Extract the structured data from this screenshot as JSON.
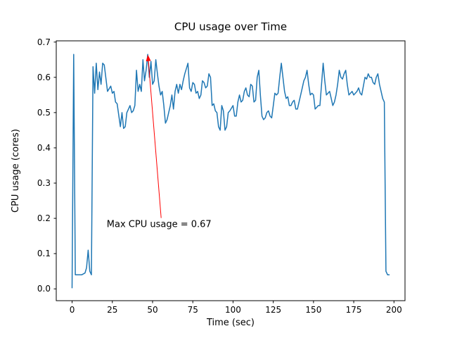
{
  "figure": {
    "background": "#ffffff"
  },
  "chart_data": {
    "type": "line",
    "title": "CPU usage over Time",
    "xlabel": "Time (sec)",
    "ylabel": "CPU usage (cores)",
    "line_color": "#1f77b4",
    "legend": "none",
    "grid": false,
    "xlim": [
      -9.85,
      206.85
    ],
    "ylim": [
      -0.0335,
      0.7035
    ],
    "xticks": [
      0,
      25,
      50,
      75,
      100,
      125,
      150,
      175,
      200
    ],
    "yticks": [
      0,
      0.1,
      0.2,
      0.3,
      0.4,
      0.5,
      0.6,
      0.7
    ],
    "ytick_labels": [
      "0.0",
      "0.1",
      "0.2",
      "0.3",
      "0.4",
      "0.5",
      "0.6",
      "0.7"
    ],
    "annotation": {
      "text": "Max CPU usage = 0.67",
      "arrow_x": 47,
      "arrow_y": 0.67,
      "text_x": 21.5,
      "text_y": 0.175,
      "color": "#ff0000"
    },
    "points": [
      [
        0,
        0.003
      ],
      [
        1,
        0.665
      ],
      [
        2,
        0.04
      ],
      [
        4,
        0.04
      ],
      [
        6,
        0.04
      ],
      [
        8,
        0.045
      ],
      [
        9,
        0.06
      ],
      [
        10,
        0.11
      ],
      [
        11,
        0.05
      ],
      [
        12,
        0.04
      ],
      [
        13,
        0.63
      ],
      [
        14,
        0.555
      ],
      [
        15,
        0.64
      ],
      [
        16,
        0.565
      ],
      [
        17,
        0.615
      ],
      [
        18,
        0.58
      ],
      [
        19,
        0.64
      ],
      [
        20,
        0.635
      ],
      [
        22,
        0.56
      ],
      [
        24,
        0.575
      ],
      [
        25,
        0.555
      ],
      [
        26,
        0.56
      ],
      [
        27,
        0.53
      ],
      [
        28,
        0.525
      ],
      [
        30,
        0.46
      ],
      [
        31,
        0.5
      ],
      [
        32,
        0.455
      ],
      [
        33,
        0.46
      ],
      [
        34,
        0.5
      ],
      [
        35,
        0.51
      ],
      [
        36,
        0.52
      ],
      [
        37,
        0.5
      ],
      [
        38,
        0.505
      ],
      [
        39,
        0.52
      ],
      [
        40,
        0.62
      ],
      [
        41,
        0.56
      ],
      [
        42,
        0.58
      ],
      [
        43,
        0.56
      ],
      [
        44,
        0.65
      ],
      [
        45,
        0.59
      ],
      [
        46,
        0.62
      ],
      [
        47,
        0.665
      ],
      [
        48,
        0.6
      ],
      [
        49,
        0.645
      ],
      [
        50,
        0.58
      ],
      [
        51,
        0.59
      ],
      [
        52,
        0.65
      ],
      [
        53,
        0.61
      ],
      [
        54,
        0.575
      ],
      [
        55,
        0.55
      ],
      [
        56,
        0.56
      ],
      [
        57,
        0.52
      ],
      [
        58,
        0.47
      ],
      [
        59,
        0.48
      ],
      [
        60,
        0.5
      ],
      [
        61,
        0.52
      ],
      [
        62,
        0.55
      ],
      [
        63,
        0.51
      ],
      [
        64,
        0.56
      ],
      [
        65,
        0.58
      ],
      [
        66,
        0.555
      ],
      [
        67,
        0.58
      ],
      [
        68,
        0.565
      ],
      [
        69,
        0.59
      ],
      [
        70,
        0.61
      ],
      [
        71,
        0.625
      ],
      [
        72,
        0.64
      ],
      [
        73,
        0.57
      ],
      [
        74,
        0.56
      ],
      [
        75,
        0.585
      ],
      [
        76,
        0.58
      ],
      [
        77,
        0.555
      ],
      [
        78,
        0.56
      ],
      [
        79,
        0.54
      ],
      [
        80,
        0.55
      ],
      [
        81,
        0.59
      ],
      [
        82,
        0.585
      ],
      [
        83,
        0.57
      ],
      [
        84,
        0.575
      ],
      [
        85,
        0.61
      ],
      [
        86,
        0.6
      ],
      [
        87,
        0.52
      ],
      [
        88,
        0.525
      ],
      [
        89,
        0.505
      ],
      [
        90,
        0.5
      ],
      [
        91,
        0.46
      ],
      [
        92,
        0.45
      ],
      [
        93,
        0.52
      ],
      [
        94,
        0.505
      ],
      [
        95,
        0.45
      ],
      [
        96,
        0.46
      ],
      [
        97,
        0.5
      ],
      [
        98,
        0.505
      ],
      [
        100,
        0.52
      ],
      [
        101,
        0.49
      ],
      [
        102,
        0.49
      ],
      [
        103,
        0.53
      ],
      [
        104,
        0.55
      ],
      [
        105,
        0.53
      ],
      [
        106,
        0.535
      ],
      [
        107,
        0.56
      ],
      [
        108,
        0.57
      ],
      [
        109,
        0.55
      ],
      [
        110,
        0.545
      ],
      [
        111,
        0.58
      ],
      [
        112,
        0.575
      ],
      [
        113,
        0.53
      ],
      [
        114,
        0.535
      ],
      [
        115,
        0.6
      ],
      [
        116,
        0.62
      ],
      [
        117,
        0.55
      ],
      [
        118,
        0.49
      ],
      [
        119,
        0.48
      ],
      [
        120,
        0.485
      ],
      [
        121,
        0.5
      ],
      [
        122,
        0.505
      ],
      [
        123,
        0.49
      ],
      [
        124,
        0.485
      ],
      [
        125,
        0.52
      ],
      [
        126,
        0.555
      ],
      [
        127,
        0.55
      ],
      [
        128,
        0.555
      ],
      [
        129,
        0.6
      ],
      [
        130,
        0.64
      ],
      [
        131,
        0.6
      ],
      [
        132,
        0.56
      ],
      [
        133,
        0.54
      ],
      [
        134,
        0.545
      ],
      [
        135,
        0.52
      ],
      [
        136,
        0.52
      ],
      [
        137,
        0.53
      ],
      [
        138,
        0.535
      ],
      [
        139,
        0.51
      ],
      [
        140,
        0.51
      ],
      [
        141,
        0.53
      ],
      [
        142,
        0.55
      ],
      [
        143,
        0.57
      ],
      [
        144,
        0.59
      ],
      [
        145,
        0.6
      ],
      [
        146,
        0.62
      ],
      [
        147,
        0.58
      ],
      [
        148,
        0.55
      ],
      [
        149,
        0.555
      ],
      [
        150,
        0.55
      ],
      [
        151,
        0.51
      ],
      [
        152,
        0.515
      ],
      [
        153,
        0.52
      ],
      [
        154,
        0.52
      ],
      [
        155,
        0.58
      ],
      [
        156,
        0.64
      ],
      [
        157,
        0.59
      ],
      [
        158,
        0.55
      ],
      [
        159,
        0.555
      ],
      [
        160,
        0.56
      ],
      [
        161,
        0.54
      ],
      [
        162,
        0.52
      ],
      [
        163,
        0.53
      ],
      [
        164,
        0.55
      ],
      [
        165,
        0.58
      ],
      [
        166,
        0.62
      ],
      [
        167,
        0.6
      ],
      [
        168,
        0.595
      ],
      [
        169,
        0.61
      ],
      [
        170,
        0.62
      ],
      [
        171,
        0.58
      ],
      [
        172,
        0.55
      ],
      [
        173,
        0.555
      ],
      [
        174,
        0.56
      ],
      [
        175,
        0.55
      ],
      [
        176,
        0.555
      ],
      [
        177,
        0.56
      ],
      [
        178,
        0.57
      ],
      [
        179,
        0.555
      ],
      [
        180,
        0.55
      ],
      [
        181,
        0.575
      ],
      [
        182,
        0.6
      ],
      [
        183,
        0.595
      ],
      [
        184,
        0.61
      ],
      [
        185,
        0.6
      ],
      [
        186,
        0.6
      ],
      [
        187,
        0.585
      ],
      [
        188,
        0.58
      ],
      [
        189,
        0.6
      ],
      [
        190,
        0.61
      ],
      [
        191,
        0.58
      ],
      [
        192,
        0.56
      ],
      [
        193,
        0.54
      ],
      [
        194,
        0.53
      ],
      [
        195,
        0.05
      ],
      [
        196,
        0.04
      ],
      [
        197,
        0.04
      ]
    ]
  }
}
